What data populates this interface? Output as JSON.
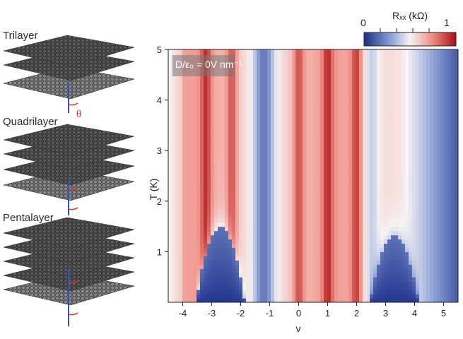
{
  "panel_labels": {
    "trilayer": "Trilayer",
    "quadrilayer": "Quadrilayer",
    "pentalayer": "Pentalayer",
    "twist_angle": "θ"
  },
  "annotation": {
    "text": "D/ε₀ = 0V nm⁻¹"
  },
  "colorbar": {
    "label": "Rₓₓ (kΩ)",
    "min_label": "0",
    "max_label": "1",
    "colors": [
      "#1b2f8c",
      "#ffffff",
      "#a80f14"
    ]
  },
  "chart_data": {
    "type": "heatmap",
    "xlabel": "ν",
    "ylabel": "T (K)",
    "xlim": [
      -4.5,
      5.5
    ],
    "ylim": [
      0,
      5
    ],
    "x_ticks": [
      "-4",
      "-3",
      "-2",
      "-1",
      "0",
      "1",
      "2",
      "3",
      "4",
      "5"
    ],
    "y_ticks": [
      "1",
      "2",
      "3",
      "4",
      "5"
    ],
    "colorbar_range": [
      0,
      1
    ],
    "superconducting_domes": [
      {
        "center_nu": -2.7,
        "max_T": 1.5
      },
      {
        "center_nu": 3.3,
        "max_T": 1.3
      }
    ],
    "resistive_peaks_nu": [
      -3.2,
      -2.3,
      0,
      1,
      2
    ]
  }
}
